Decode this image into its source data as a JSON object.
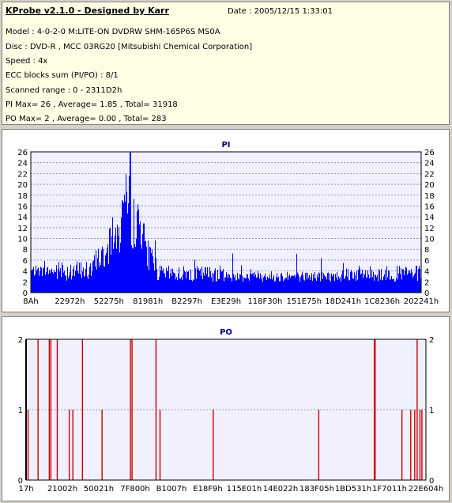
{
  "info": {
    "title": "KProbe v2.1.0 - Designed by Karr",
    "date": "Date : 2005/12/15 1:33:01",
    "lines": [
      "Model : 4-0-2-0 M:LITE-ON DVDRW SHM-165P6S MS0A",
      "Disc : DVD-R , MCC 03RG20  [Mitsubishi Chemical Corporation]",
      "Speed : 4x",
      "ECC blocks sum (PI/PO) : 8/1",
      "Scanned range : 0 - 2311D2h",
      "PI Max= 26 , Average= 1.85 , Total= 31918",
      "PO Max= 2 , Average= 0.00 , Total= 283"
    ]
  },
  "colors": {
    "pi": "#0000ff",
    "po": "#cc0000",
    "plot_bg": "#f0f0ff",
    "grid": "#8080c0",
    "title": "#000080"
  },
  "chart_data": [
    {
      "type": "bar",
      "title": "PI",
      "ylim": [
        0,
        26
      ],
      "y_ticks": [
        0,
        2,
        4,
        6,
        8,
        10,
        12,
        14,
        16,
        18,
        20,
        22,
        24,
        26
      ],
      "x_tick_labels": [
        "8Ah",
        "22972h",
        "52275h",
        "81981h",
        "B2297h",
        "E3E29h",
        "118F30h",
        "151E75h",
        "18D241h",
        "1C8236h",
        "202241h"
      ],
      "grid": true,
      "segments": [
        {
          "x": [
            0,
            0.06
          ],
          "y": [
            3,
            5
          ]
        },
        {
          "x": [
            0.06,
            0.16
          ],
          "y": [
            2,
            6
          ]
        },
        {
          "x": [
            0.16,
            0.2
          ],
          "y": [
            4,
            9
          ]
        },
        {
          "x": [
            0.2,
            0.23
          ],
          "y": [
            7,
            14
          ]
        },
        {
          "x": [
            0.23,
            0.255
          ],
          "y": [
            11,
            22
          ]
        },
        {
          "x": [
            0.255,
            0.29
          ],
          "y": [
            8,
            17
          ]
        },
        {
          "x": [
            0.29,
            0.32
          ],
          "y": [
            4,
            10
          ]
        },
        {
          "x": [
            0.32,
            0.5
          ],
          "y": [
            2,
            5
          ]
        },
        {
          "x": [
            0.5,
            0.8
          ],
          "y": [
            2,
            4
          ]
        },
        {
          "x": [
            0.8,
            0.99
          ],
          "y": [
            2,
            5
          ]
        }
      ],
      "peak": {
        "x": 0.255,
        "value": 26
      }
    },
    {
      "type": "bar",
      "title": "PO",
      "ylim": [
        0,
        2
      ],
      "y_ticks": [
        0,
        1,
        2
      ],
      "x_tick_labels": [
        "17h",
        "21002h",
        "50021h",
        "7F800h",
        "B1007h",
        "E18F9h",
        "115E01h",
        "14E022h",
        "183F05h",
        "1BD531h",
        "1F7011h",
        "22E604h"
      ],
      "grid": true,
      "values": [
        {
          "x": 0.0,
          "value": 2
        },
        {
          "x": 0.005,
          "value": 1
        },
        {
          "x": 0.03,
          "value": 2
        },
        {
          "x": 0.058,
          "value": 2
        },
        {
          "x": 0.062,
          "value": 2
        },
        {
          "x": 0.078,
          "value": 2
        },
        {
          "x": 0.108,
          "value": 1
        },
        {
          "x": 0.117,
          "value": 1
        },
        {
          "x": 0.141,
          "value": 2
        },
        {
          "x": 0.19,
          "value": 1
        },
        {
          "x": 0.261,
          "value": 2
        },
        {
          "x": 0.265,
          "value": 2
        },
        {
          "x": 0.325,
          "value": 2
        },
        {
          "x": 0.335,
          "value": 1
        },
        {
          "x": 0.468,
          "value": 1
        },
        {
          "x": 0.732,
          "value": 1
        },
        {
          "x": 0.871,
          "value": 2
        },
        {
          "x": 0.873,
          "value": 2
        },
        {
          "x": 0.94,
          "value": 1
        },
        {
          "x": 0.962,
          "value": 1
        },
        {
          "x": 0.972,
          "value": 1
        },
        {
          "x": 0.978,
          "value": 2
        },
        {
          "x": 0.985,
          "value": 1
        },
        {
          "x": 0.99,
          "value": 1
        }
      ]
    }
  ]
}
